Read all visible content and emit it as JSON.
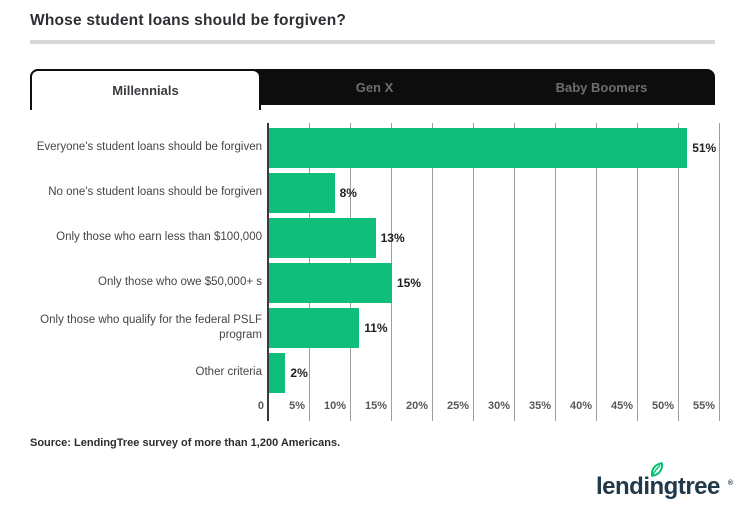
{
  "page": {
    "title": "Whose student loans should be forgiven?",
    "source": "Source: LendingTree survey of more than 1,200 Americans.",
    "logo_text": "lendingtree",
    "logo_reg": "®"
  },
  "tabs": [
    {
      "label": "Millennials",
      "active": true
    },
    {
      "label": "Gen X",
      "active": false
    },
    {
      "label": "Baby Boomers",
      "active": false
    }
  ],
  "chart_data": {
    "type": "bar",
    "orientation": "horizontal",
    "title": "Whose student loans should be forgiven?",
    "categories": [
      "Everyone's student loans should be forgiven",
      "No one's student loans should be forgiven",
      "Only those who earn less than $100,000",
      "Only those who owe $50,000+ s",
      "Only those who qualify for the federal PSLF program",
      "Other criteria"
    ],
    "values": [
      51,
      8,
      13,
      15,
      11,
      2
    ],
    "value_labels": [
      "51%",
      "8%",
      "13%",
      "15%",
      "11%",
      "2%"
    ],
    "x_ticks": [
      "0",
      "5%",
      "10%",
      "15%",
      "20%",
      "25%",
      "30%",
      "35%",
      "40%",
      "45%",
      "50%",
      "55%"
    ],
    "xlim": [
      0,
      55
    ],
    "grid": true,
    "legend": "none",
    "bar_color": "#10be7c"
  },
  "colors": {
    "bar_green": "#10be7c",
    "tab_black": "#0d0d0d",
    "tab_inactive_text": "#6e6e6e",
    "title_text": "#2e2e33",
    "divider_gray": "#d8d8d8",
    "gridline_gray": "#9f9f9f",
    "logo_navy": "#223949",
    "leaf_green": "#00c06e"
  }
}
